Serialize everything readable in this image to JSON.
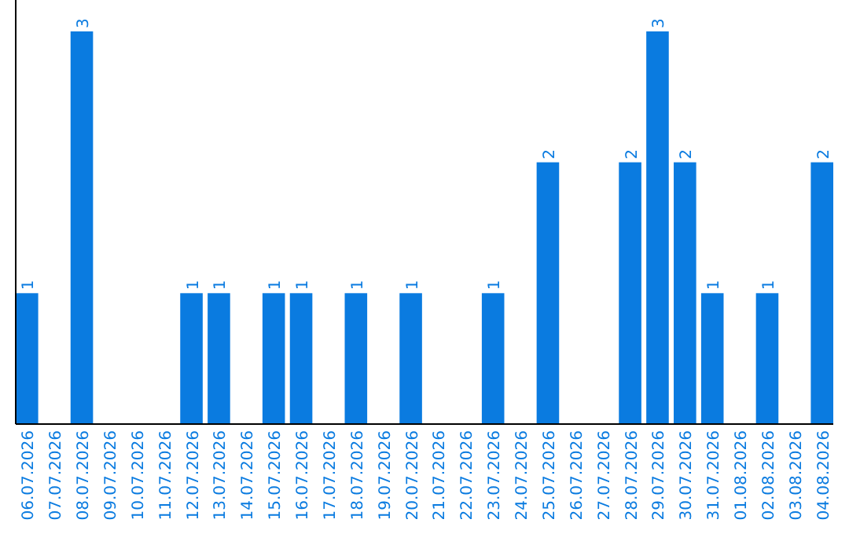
{
  "chart_data": {
    "type": "bar",
    "categories": [
      "06.07.2026",
      "07.07.2026",
      "08.07.2026",
      "09.07.2026",
      "10.07.2026",
      "11.07.2026",
      "12.07.2026",
      "13.07.2026",
      "14.07.2026",
      "15.07.2026",
      "16.07.2026",
      "17.07.2026",
      "18.07.2026",
      "19.07.2026",
      "20.07.2026",
      "21.07.2026",
      "22.07.2026",
      "23.07.2026",
      "24.07.2026",
      "25.07.2026",
      "26.07.2026",
      "27.07.2026",
      "28.07.2026",
      "29.07.2026",
      "30.07.2026",
      "31.07.2026",
      "01.08.2026",
      "02.08.2026",
      "03.08.2026",
      "04.08.2026"
    ],
    "values": [
      1,
      0,
      3,
      0,
      0,
      0,
      1,
      1,
      0,
      1,
      1,
      0,
      1,
      0,
      1,
      0,
      0,
      1,
      0,
      2,
      0,
      0,
      2,
      3,
      2,
      1,
      0,
      1,
      0,
      2
    ],
    "value_labels": [
      "1",
      null,
      "3",
      null,
      null,
      null,
      "1",
      "1",
      null,
      "1",
      "1",
      null,
      "1",
      null,
      "1",
      null,
      null,
      "1",
      null,
      "2",
      null,
      null,
      "2",
      "3",
      "2",
      "1",
      null,
      "1",
      null,
      "2"
    ],
    "color": "#0a7be0"
  }
}
